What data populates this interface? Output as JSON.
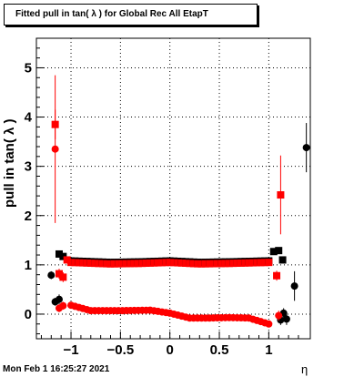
{
  "chart_data": {
    "type": "scatter",
    "title": "Fitted pull in tan( λ ) for Global Rec All EtapT",
    "xlabel": "η",
    "ylabel": "pull in tan( λ )",
    "xlim": [
      -1.35,
      1.42
    ],
    "ylim": [
      -0.5,
      5.6
    ],
    "grid": true,
    "x_ticks": [
      -1,
      -0.5,
      0,
      0.5,
      1
    ],
    "x_tick_labels": [
      "−1",
      "−0.5",
      "0",
      "0.5",
      "1"
    ],
    "y_ticks": [
      0,
      1,
      2,
      3,
      4,
      5
    ],
    "y_tick_labels": [
      "0",
      "1",
      "2",
      "3",
      "4",
      "5"
    ],
    "series": [
      {
        "marker": "square",
        "color": "#000000",
        "points": [
          [
            -1.12,
            1.22
          ],
          [
            -1.08,
            1.17
          ],
          [
            1.05,
            1.27
          ],
          [
            1.1,
            1.29
          ],
          [
            1.14,
            1.1
          ]
        ]
      },
      {
        "marker": "circle",
        "color": "#000000",
        "points": [
          [
            -1.2,
            0.79
          ],
          [
            -1.16,
            0.25
          ],
          [
            -1.12,
            0.3
          ],
          [
            1.12,
            -0.12
          ],
          [
            1.15,
            0.02
          ],
          [
            1.18,
            -0.1
          ],
          [
            1.26,
            0.57
          ],
          [
            1.38,
            3.38
          ]
        ],
        "errors": [
          0.08,
          0.08,
          0.1,
          0.1,
          0.1,
          0.12,
          0.3,
          0.5
        ]
      },
      {
        "marker": "square",
        "color": "#ff0000",
        "points": [
          [
            -1.16,
            3.85
          ],
          [
            -1.12,
            0.82
          ],
          [
            -1.08,
            0.75
          ],
          [
            -1.04,
            1.1
          ],
          [
            1.08,
            0.78
          ],
          [
            1.12,
            2.42
          ]
        ],
        "errors": [
          0.3,
          0.1,
          0.1,
          0.05,
          0.1,
          0.8
        ]
      },
      {
        "marker": "circle",
        "color": "#ff0000",
        "points": [
          [
            -1.16,
            3.35
          ],
          [
            -1.12,
            0.12
          ],
          [
            -1.08,
            0.17
          ],
          [
            1.1,
            -0.03
          ]
        ],
        "errors": [
          1.5,
          0.08,
          0.08,
          0.1
        ]
      },
      {
        "name": "mean-band",
        "marker": "square",
        "color": "#ff0000",
        "x_range": [
          -1.0,
          1.0
        ],
        "y_profile": [
          [
            -1.0,
            1.05
          ],
          [
            -0.6,
            1.02
          ],
          [
            -0.3,
            1.03
          ],
          [
            0.0,
            1.05
          ],
          [
            0.3,
            1.02
          ],
          [
            0.6,
            1.03
          ],
          [
            1.0,
            1.05
          ]
        ]
      },
      {
        "name": "width-band",
        "marker": "circle",
        "color": "#ff0000",
        "x_range": [
          -1.0,
          1.0
        ],
        "y_profile": [
          [
            -1.0,
            0.18
          ],
          [
            -0.8,
            0.07
          ],
          [
            -0.5,
            0.07
          ],
          [
            -0.2,
            0.08
          ],
          [
            0.0,
            0.02
          ],
          [
            0.2,
            -0.08
          ],
          [
            0.4,
            -0.08
          ],
          [
            0.6,
            -0.07
          ],
          [
            0.8,
            -0.08
          ],
          [
            1.0,
            -0.2
          ]
        ]
      }
    ]
  },
  "footer": {
    "timestamp": "Mon Feb  1 16:25:27 2021"
  }
}
